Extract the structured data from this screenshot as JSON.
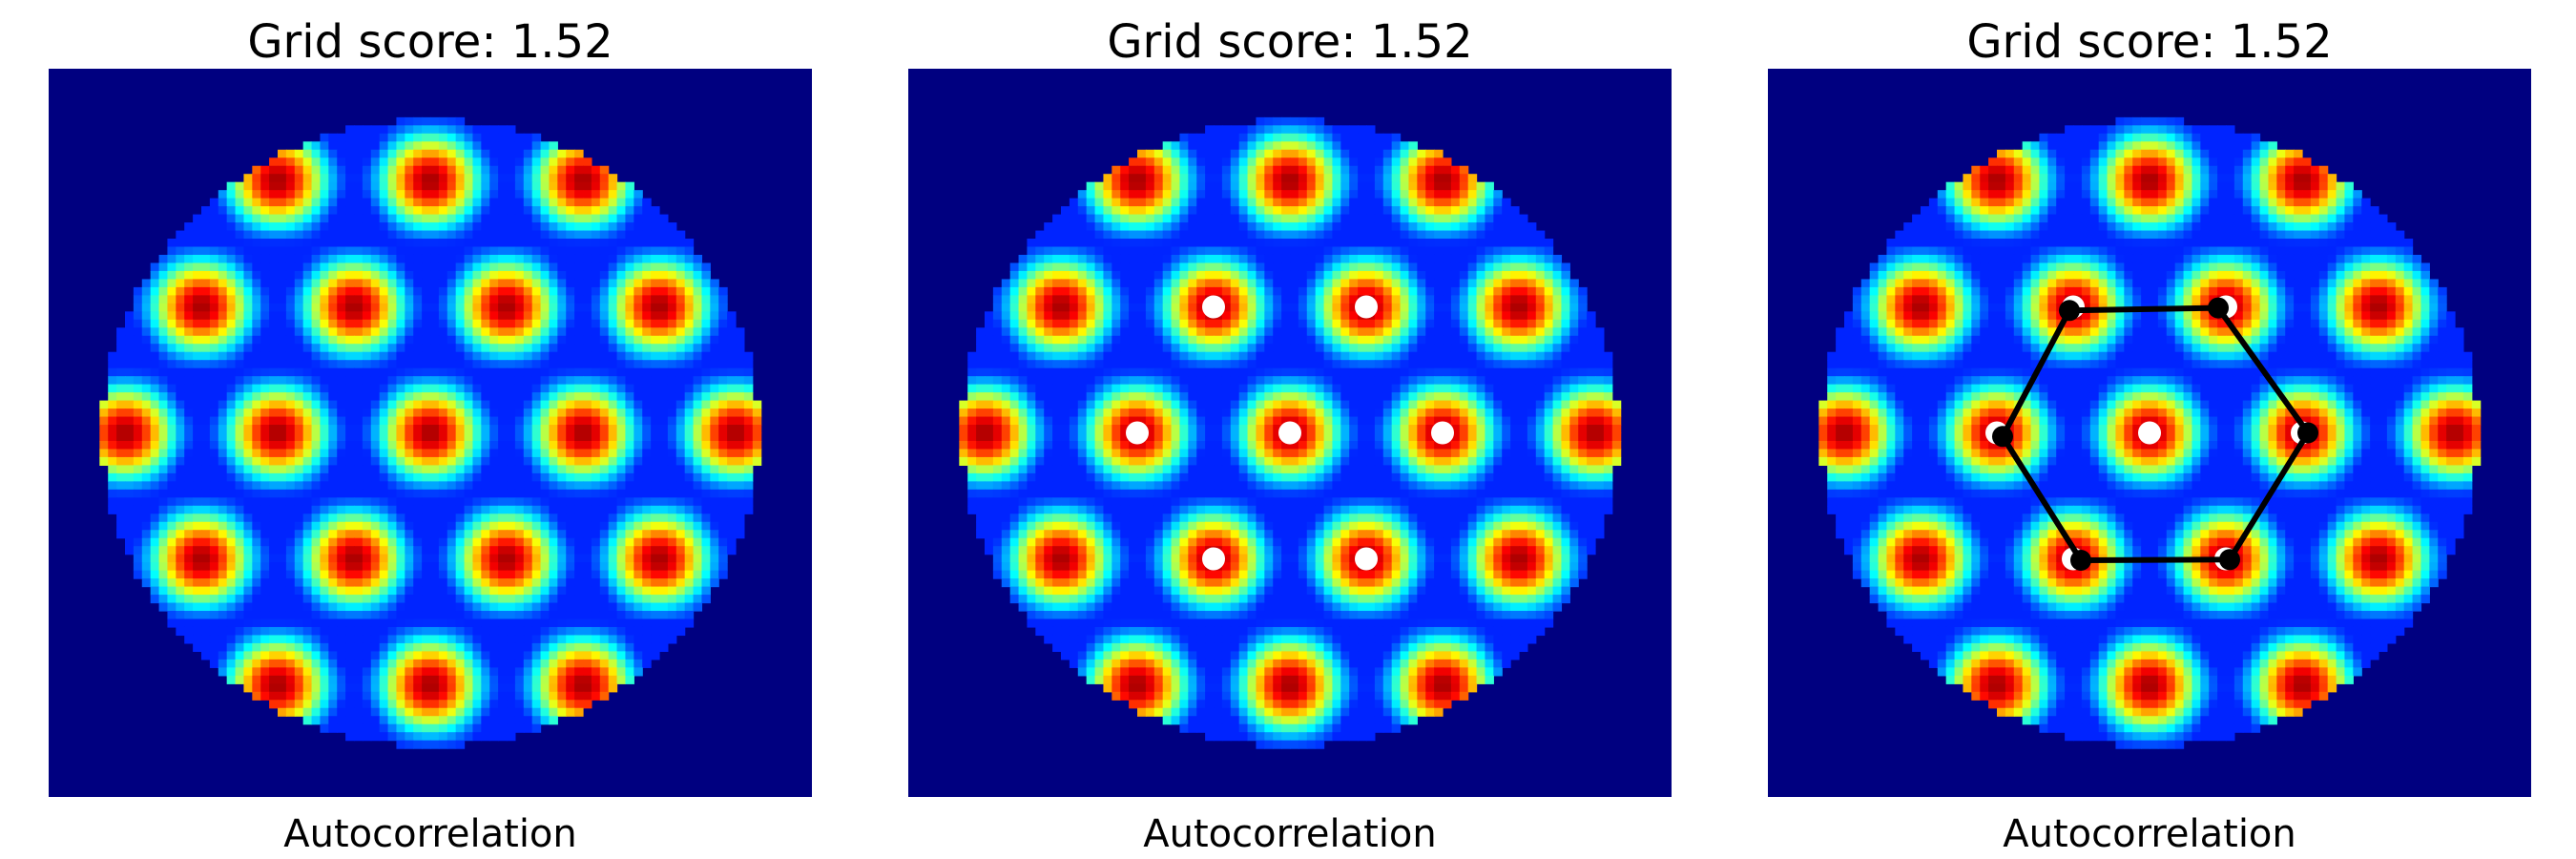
{
  "figure": {
    "background": "#ffffff",
    "colormap": "jet",
    "outside_value_color": "#00007f"
  },
  "chart_data": [
    {
      "type": "heatmap",
      "title": "Grid score: 1.52",
      "xlabel": "Autocorrelation",
      "ylabel": "",
      "axes_visible": false,
      "grid": false,
      "legend": "none",
      "colormap": "jet",
      "value_range": [
        0,
        1
      ],
      "extent": [
        -1,
        1,
        -1,
        1
      ],
      "mask": "circle",
      "mask_radius": 0.86,
      "background_value": 0,
      "peak_spacing": 0.4,
      "peak_orientation_deg": 0,
      "annotations": []
    },
    {
      "type": "heatmap",
      "title": "Grid score: 1.52",
      "xlabel": "Autocorrelation",
      "ylabel": "",
      "axes_visible": false,
      "grid": false,
      "legend": "none",
      "colormap": "jet",
      "value_range": [
        0,
        1
      ],
      "extent": [
        -1,
        1,
        -1,
        1
      ],
      "mask": "circle",
      "mask_radius": 0.86,
      "background_value": 0,
      "peak_spacing": 0.4,
      "peak_orientation_deg": 0,
      "annotations": [
        {
          "kind": "peak-markers",
          "color": "#ffffff",
          "points": [
            [
              0,
              0
            ],
            [
              0.4,
              0
            ],
            [
              0.2,
              0.346
            ],
            [
              -0.2,
              0.346
            ],
            [
              -0.4,
              0
            ],
            [
              -0.2,
              -0.346
            ],
            [
              0.2,
              -0.346
            ]
          ]
        }
      ]
    },
    {
      "type": "heatmap",
      "title": "Grid score: 1.52",
      "xlabel": "Autocorrelation",
      "ylabel": "",
      "axes_visible": false,
      "grid": false,
      "legend": "none",
      "colormap": "jet",
      "value_range": [
        0,
        1
      ],
      "extent": [
        -1,
        1,
        -1,
        1
      ],
      "mask": "circle",
      "mask_radius": 0.86,
      "background_value": 0,
      "peak_spacing": 0.4,
      "peak_orientation_deg": 0,
      "annotations": [
        {
          "kind": "peak-markers",
          "color": "#ffffff",
          "points": [
            [
              0,
              0
            ],
            [
              0.4,
              0
            ],
            [
              0.2,
              0.346
            ],
            [
              -0.2,
              0.346
            ],
            [
              -0.4,
              0
            ],
            [
              -0.2,
              -0.346
            ],
            [
              0.2,
              -0.346
            ]
          ]
        },
        {
          "kind": "hexagon",
          "color": "#000000",
          "vertices": [
            [
              0.415,
              0
            ],
            [
              0.18,
              0.343
            ],
            [
              -0.21,
              0.336
            ],
            [
              -0.385,
              -0.01
            ],
            [
              -0.18,
              -0.35
            ],
            [
              0.21,
              -0.348
            ]
          ]
        }
      ]
    }
  ]
}
